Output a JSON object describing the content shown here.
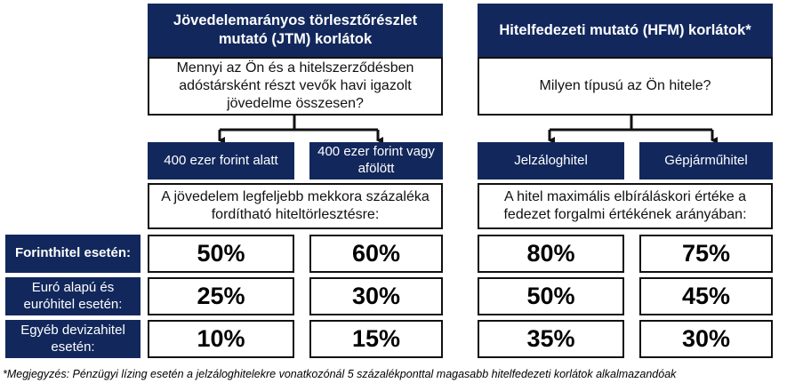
{
  "jtm": {
    "header": "Jövedelemarányos törlesztőrészlet mutató (JTM) korlátok",
    "question": "Mennyi az Ön és a hitelszerződésben adóstársként részt vevők havi igazolt jövedelme összesen?",
    "options": [
      "400 ezer forint alatt",
      "400 ezer forint vagy afölött"
    ],
    "caption": "A jövedelem legfeljebb mekkora százaléka fordítható hiteltörlesztésre:"
  },
  "hfm": {
    "header": "Hitelfedezeti mutató (HFM) korlátok*",
    "question": "Milyen típusú az Ön hitele?",
    "options": [
      "Jelzáloghitel",
      "Gépjárműhitel"
    ],
    "caption": "A hitel maximális elbíráláskori értéke a fedezet forgalmi értékének arányában:"
  },
  "rows": [
    {
      "label": "Forinthitel esetén:",
      "values": [
        "50%",
        "60%",
        "80%",
        "75%"
      ]
    },
    {
      "label": "Euró alapú és euróhitel esetén:",
      "values": [
        "25%",
        "30%",
        "50%",
        "45%"
      ]
    },
    {
      "label": "Egyéb devizahitel esetén:",
      "values": [
        "10%",
        "15%",
        "35%",
        "30%"
      ]
    }
  ],
  "footnote": "*Megjegyzés: Pénzügyi lízing esetén a jelzáloghitelekre vonatkozónál 5 százalékponttal magasabb hitelfedezeti korlátok alkalmazandóak",
  "colors": {
    "navy": "#12285c",
    "border": "#111111"
  }
}
